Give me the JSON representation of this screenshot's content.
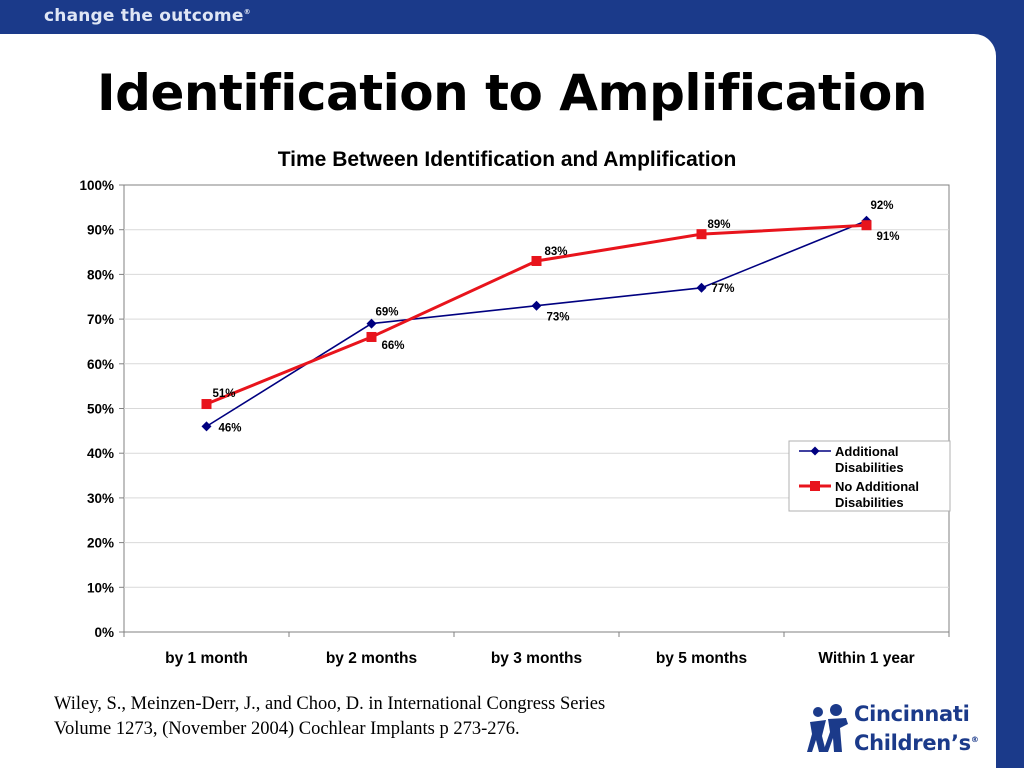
{
  "header": {
    "tagline": "change the outcome",
    "tagline_mark": "®"
  },
  "slide": {
    "title": "Identification to Amplification"
  },
  "chart_data": {
    "type": "line",
    "title": "Time Between Identification and Amplification",
    "categories": [
      "by 1 month",
      "by 2 months",
      "by 3 months",
      "by 5 months",
      "Within 1 year"
    ],
    "ylim": [
      0,
      100
    ],
    "yticks": [
      "0%",
      "10%",
      "20%",
      "30%",
      "40%",
      "50%",
      "60%",
      "70%",
      "80%",
      "90%",
      "100%"
    ],
    "grid": true,
    "legend_position": "right",
    "series": [
      {
        "name": "Additional Disabilities",
        "legend_lines": [
          "Additional",
          "Disabilities"
        ],
        "values": [
          46,
          69,
          73,
          77,
          92
        ],
        "labels": [
          "46%",
          "69%",
          "73%",
          "77%",
          "92%"
        ],
        "color": "#000080",
        "marker": "diamond"
      },
      {
        "name": "No Additional Disabilities",
        "legend_lines": [
          "No Additional",
          "Disabilities"
        ],
        "values": [
          51,
          66,
          83,
          89,
          91
        ],
        "labels": [
          "51%",
          "66%",
          "83%",
          "89%",
          "91%"
        ],
        "color": "#e8141c",
        "marker": "square"
      }
    ]
  },
  "citation": {
    "line1": "Wiley, S., Meinzen-Derr, J., and Choo, D.  in International Congress Series",
    "line2": "Volume 1273, (November 2004)  Cochlear Implants p 273-276."
  },
  "logo": {
    "line1": "Cincinnati",
    "line2": "Children’s",
    "mark": "®"
  },
  "colors": {
    "brand_blue": "#1b3a8a",
    "series_blue": "#000080",
    "series_red": "#e8141c"
  }
}
